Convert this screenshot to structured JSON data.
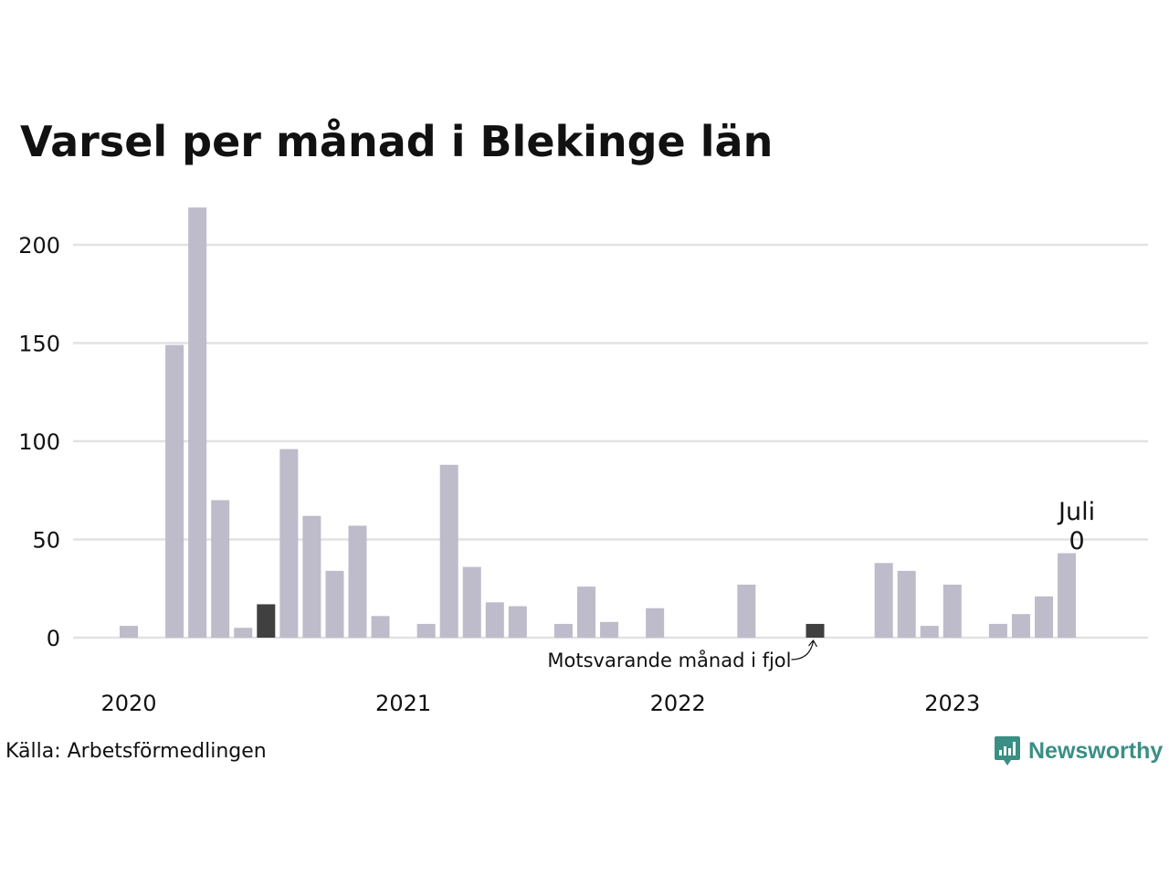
{
  "chart_data": {
    "type": "bar",
    "title": "Varsel per månad i Blekinge län",
    "x": [
      "2020-01",
      "2020-02",
      "2020-03",
      "2020-04",
      "2020-05",
      "2020-06",
      "2020-07",
      "2020-08",
      "2020-09",
      "2020-10",
      "2020-11",
      "2020-12",
      "2021-01",
      "2021-02",
      "2021-03",
      "2021-04",
      "2021-05",
      "2021-06",
      "2021-07",
      "2021-08",
      "2021-09",
      "2021-10",
      "2021-11",
      "2021-12",
      "2022-01",
      "2022-02",
      "2022-03",
      "2022-04",
      "2022-05",
      "2022-06",
      "2022-07",
      "2022-08",
      "2022-09",
      "2022-10",
      "2022-11",
      "2022-12",
      "2023-01",
      "2023-02",
      "2023-03",
      "2023-04",
      "2023-05",
      "2023-06",
      "2023-07"
    ],
    "values": [
      6,
      0,
      149,
      219,
      70,
      5,
      17,
      96,
      62,
      34,
      57,
      11,
      0,
      7,
      88,
      36,
      18,
      16,
      0,
      7,
      26,
      8,
      0,
      15,
      0,
      0,
      0,
      27,
      0,
      0,
      7,
      0,
      0,
      38,
      34,
      6,
      27,
      0,
      7,
      12,
      21,
      43,
      0
    ],
    "highlight_x": [
      "2020-07",
      "2022-07"
    ],
    "ylim": [
      0,
      220
    ],
    "yticks": [
      0,
      50,
      100,
      150,
      200
    ],
    "xticks": [
      {
        "label": "2020",
        "x": "2020-01"
      },
      {
        "label": "2021",
        "x": "2021-01"
      },
      {
        "label": "2022",
        "x": "2022-01"
      },
      {
        "label": "2023",
        "x": "2023-01"
      }
    ],
    "annotations": {
      "last_month": "Juli",
      "last_value": "0",
      "comparison": "Motsvarande månad i fjol"
    },
    "grid": true,
    "colors": {
      "bar": "#bebbca",
      "highlight": "#404040",
      "grid": "#e2e2e2"
    }
  },
  "footer": {
    "source": "Källa: Arbetsförmedlingen",
    "logo_text": "Newsworthy",
    "logo_color": "#3a8f84"
  }
}
